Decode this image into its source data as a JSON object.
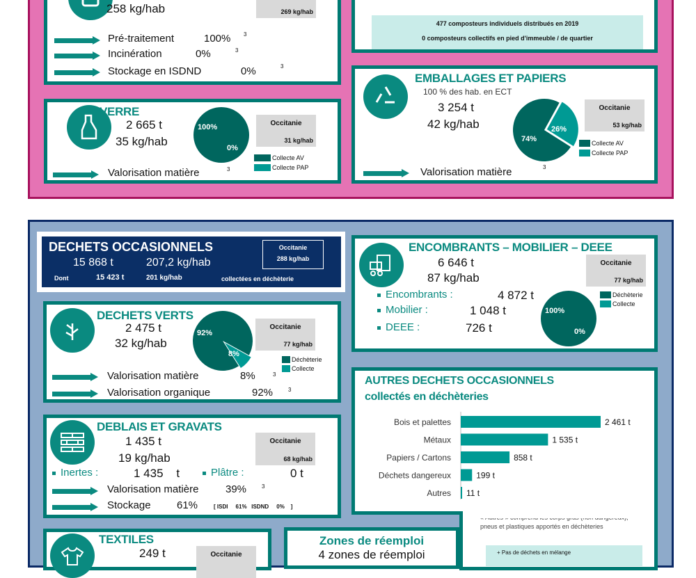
{
  "colors": {
    "teal": "#0a8a80",
    "pie_dark": "#00665e",
    "pie_light": "#009a94",
    "pink": "#e573b4",
    "navy": "#0b2a66",
    "blue_bg": "#8eaaca"
  },
  "omr": {
    "kg_hab": "258  kg/hab",
    "occitanie_value": "269 kg/hab",
    "flows": [
      {
        "label": "Pré-traitement",
        "pct": "100%",
        "note": "3"
      },
      {
        "label": "Incinération",
        "pct": "0%",
        "note": "3"
      },
      {
        "label": "Stockage en ISDND",
        "pct": "0%",
        "note": "3"
      }
    ]
  },
  "compost": {
    "line1": "477  composteurs individuels distribués en 2019",
    "line2": "0  composteurs collectifs en pied d'immeuble / de quartier"
  },
  "verre": {
    "title": "VERRE",
    "tonnes": "2 665  t",
    "kg_hab": "35  kg/hab",
    "occitanie_label": "Occitanie",
    "occitanie_value": "31 kg/hab",
    "pie": [
      {
        "label": "Collecte AV",
        "value": 100,
        "text": "100%"
      },
      {
        "label": "Collecte PAP",
        "value": 0,
        "text": "0%"
      }
    ],
    "flow": "Valorisation matière",
    "note": "3"
  },
  "emballages": {
    "title": "EMBALLAGES ET PAPIERS",
    "ect": "100   % des hab. en ECT",
    "tonnes": "3 254  t",
    "kg_hab": "42  kg/hab",
    "occitanie_label": "Occitanie",
    "occitanie_value": "53 kg/hab",
    "pie": [
      {
        "label": "Collecte AV",
        "value": 74,
        "text": "74%"
      },
      {
        "label": "Collecte PAP",
        "value": 26,
        "text": "26%"
      }
    ],
    "flow": "Valorisation matière",
    "note": "3"
  },
  "occasionnels": {
    "title": "DECHETS OCCASIONNELS",
    "tonnes": "15 868  t",
    "kg_hab": "207,2  kg/hab",
    "occitanie_label": "Occitanie",
    "occitanie_value": "288 kg/hab",
    "dont": "Dont",
    "dont_t": "15 423  t",
    "dont_kg": "201 kg/hab",
    "dont_suffix": "collectées en déchèterie"
  },
  "verts": {
    "title": "DECHETS VERTS",
    "tonnes": "2 475  t",
    "kg_hab": "32  kg/hab",
    "occitanie_label": "Occitanie",
    "occitanie_value": "77 kg/hab",
    "pie": [
      {
        "label": "Déchèterie",
        "value": 92,
        "text": "92%"
      },
      {
        "label": "Collecte",
        "value": 8,
        "text": "8%"
      }
    ],
    "flows": [
      {
        "label": "Valorisation matière",
        "pct": "8%",
        "note": "3"
      },
      {
        "label": "Valorisation organique",
        "pct": "92%",
        "note": "3"
      }
    ]
  },
  "deblais": {
    "title": "DEBLAIS ET GRAVATS",
    "tonnes": "1 435  t",
    "kg_hab": "19 kg/hab",
    "occitanie_label": "Occitanie",
    "occitanie_value": "68 kg/hab",
    "inertes_label": "Inertes :",
    "inertes_value": "1 435    t",
    "platre_label": "Plâtre :",
    "platre_value": "0 t",
    "flows": [
      {
        "label": "Valorisation matière",
        "pct": "39%",
        "note": "3"
      },
      {
        "label": "Stockage",
        "pct": "61%",
        "detail": "[ ISDI     61%   ISDND     0%    ]"
      }
    ]
  },
  "encombrants": {
    "title": "ENCOMBRANTS – MOBILIER – DEEE",
    "tonnes": "6 646  t",
    "kg_hab": "87  kg/hab",
    "occitanie_label": "Occitanie",
    "occitanie_value": "77 kg/hab",
    "items": [
      {
        "label": "Encombrants :",
        "value": "4 872  t"
      },
      {
        "label": "Mobilier :",
        "value": "1 048  t"
      },
      {
        "label": "DEEE :",
        "value": "726  t"
      }
    ],
    "pie": [
      {
        "label": "Déchèterie",
        "value": 100,
        "text": "100%"
      },
      {
        "label": "Collecte",
        "value": 0,
        "text": "0%"
      }
    ]
  },
  "autres": {
    "title": "AUTRES DECHETS OCCASIONNELS",
    "subtitle": "collectés en déchèteries",
    "note": "« Autres » comprend les corps gras (non dangereux), pneus et plastiques apportés en déchèteries",
    "bullet": "+   Pas de  déchets en mélange"
  },
  "chart_data": {
    "type": "bar",
    "orientation": "horizontal",
    "categories": [
      "Bois et palettes",
      "Métaux",
      "Papiers / Cartons",
      "Déchets dangereux",
      "Autres"
    ],
    "values": [
      2461,
      1535,
      858,
      199,
      11
    ],
    "labels": [
      "2 461 t",
      "1 535 t",
      "858 t",
      "199 t",
      "11 t"
    ],
    "unit": "t",
    "title": "AUTRES DECHETS OCCASIONNELS collectés en déchèteries"
  },
  "textiles": {
    "title": "TEXTILES",
    "tonnes": "249  t",
    "occitanie_label": "Occitanie"
  },
  "reemploi": {
    "title": "Zones de réemploi",
    "value": "4 zones de réemploi"
  }
}
